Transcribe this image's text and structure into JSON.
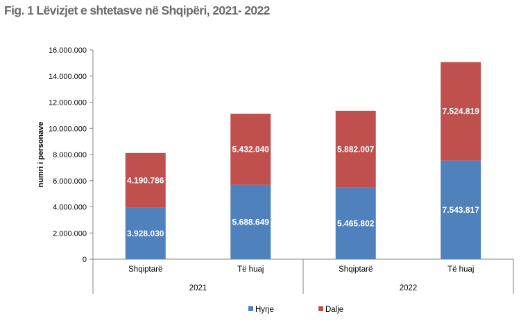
{
  "title": "Fig. 1 Lëvizjet e shtetasve në Shqipëri, 2021- 2022",
  "chart_data": {
    "type": "bar",
    "stacked": true,
    "title": "Fig. 1 Lëvizjet e shtetasve në Shqipëri, 2021- 2022",
    "ylabel": "numri i personave",
    "xlabel": "",
    "ylim": [
      0,
      16000000
    ],
    "yticks": [
      0,
      2000000,
      4000000,
      6000000,
      8000000,
      10000000,
      12000000,
      14000000,
      16000000
    ],
    "ytick_labels": [
      "0",
      "2.000.000",
      "4.000.000",
      "6.000.000",
      "8.000.000",
      "10.000.000",
      "12.000.000",
      "14.000.000",
      "16.000.000"
    ],
    "categories": [
      "Shqiptarë",
      "Të huaj",
      "Shqiptarë",
      "Të huaj"
    ],
    "groups": [
      {
        "label": "2021",
        "categories": [
          0,
          1
        ]
      },
      {
        "label": "2022",
        "categories": [
          2,
          3
        ]
      }
    ],
    "series": [
      {
        "name": "Hyrje",
        "color": "#4f81bd",
        "values": [
          3928030,
          5688649,
          5465802,
          7543817
        ],
        "labels": [
          "3.928.030",
          "5.688.649",
          "5.465.802",
          "7.543.817"
        ]
      },
      {
        "name": "Dalje",
        "color": "#c0504d",
        "values": [
          4190786,
          5432040,
          5882007,
          7524819
        ],
        "labels": [
          "4.190.786",
          "5.432.040",
          "5.882.007",
          "7.524.819"
        ]
      }
    ],
    "legend_position": "bottom-center",
    "grid": false
  }
}
